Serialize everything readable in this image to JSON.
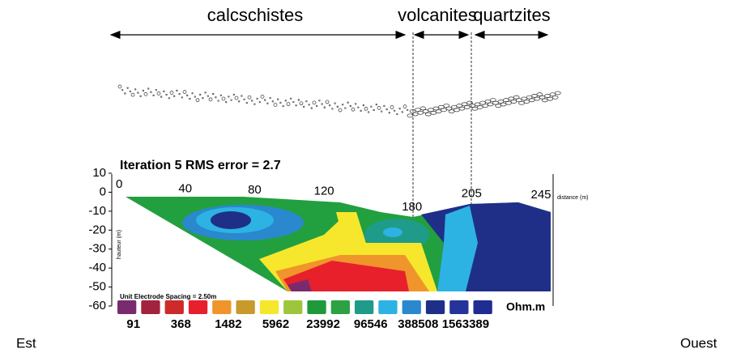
{
  "formations": [
    {
      "label": "calcschistes"
    },
    {
      "label": "volcanites"
    },
    {
      "label": "quartzites"
    }
  ],
  "section": {
    "title": "Iteration 5 RMS error = 2.7",
    "y_ticks": [
      10,
      0,
      -10,
      -20,
      -30,
      -40,
      -50,
      -60
    ],
    "x_ticks": [
      0,
      40,
      80,
      120,
      180,
      205,
      245
    ],
    "x_axis_label": "distance (m)",
    "y_axis_label": "hauteur (m)",
    "note": "Unit Electrode Spacing = 2.50m"
  },
  "legend": {
    "colors": [
      "#7a2b6d",
      "#a3233f",
      "#cf2a2a",
      "#e7202b",
      "#f0952b",
      "#c8992b",
      "#f6e72c",
      "#9ec63c",
      "#1f9a3b",
      "#2da243",
      "#1f9b8a",
      "#2cb3e3",
      "#2a88cf",
      "#1f2f88",
      "#25339b",
      "#1f2c92"
    ],
    "labels": [
      91,
      368,
      1482,
      5962,
      23992,
      96546,
      388508,
      1563389
    ],
    "unit": "Ohm.m"
  },
  "directions": {
    "left": "Est",
    "right": "Ouest"
  }
}
